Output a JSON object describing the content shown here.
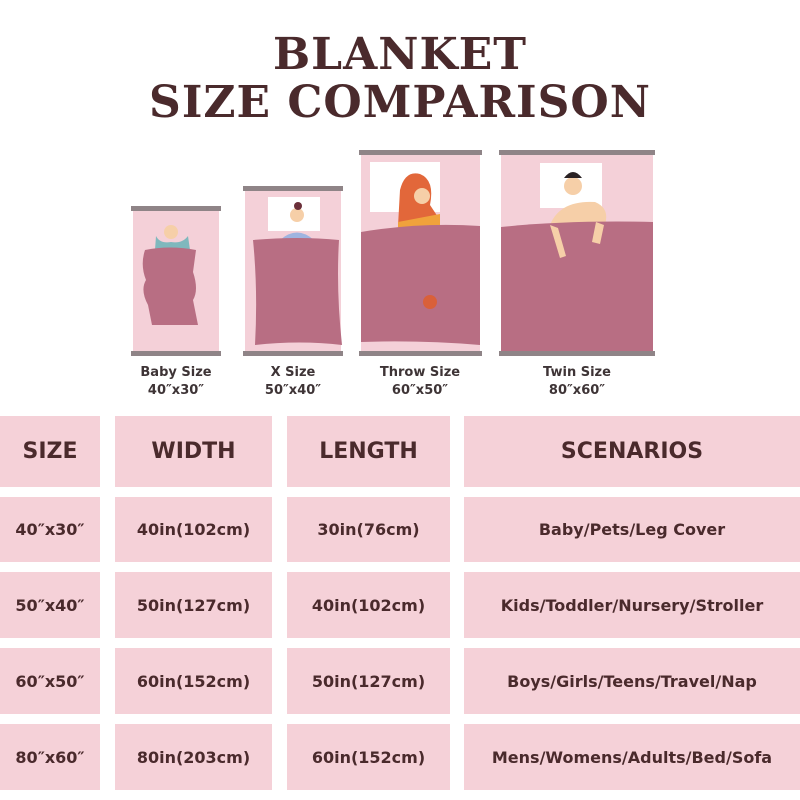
{
  "title": {
    "line1": "BLANKET",
    "line2": "SIZE COMPARISON"
  },
  "colors": {
    "text": "#4a2a2c",
    "cell_bg": "#f5d1d8",
    "blanket": "#b86e83",
    "bed_bg": "#f4d0d8",
    "rail": "#8f8487"
  },
  "sizes": [
    {
      "name": "Baby Size",
      "dims": "40″x30″"
    },
    {
      "name": "X Size",
      "dims": "50″x40″"
    },
    {
      "name": "Throw Size",
      "dims": "60″x50″"
    },
    {
      "name": "Twin Size",
      "dims": "80″x60″"
    }
  ],
  "table": {
    "headers": [
      "SIZE",
      "WIDTH",
      "LENGTH",
      "SCENARIOS"
    ],
    "rows": [
      [
        "40″x30″",
        "40in(102cm)",
        "30in(76cm)",
        "Baby/Pets/Leg Cover"
      ],
      [
        "50″x40″",
        "50in(127cm)",
        "40in(102cm)",
        "Kids/Toddler/Nursery/Stroller"
      ],
      [
        "60″x50″",
        "60in(152cm)",
        "50in(127cm)",
        "Boys/Girls/Teens/Travel/Nap"
      ],
      [
        "80″x60″",
        "80in(203cm)",
        "60in(152cm)",
        "Mens/Womens/Adults/Bed/Sofa"
      ]
    ]
  }
}
